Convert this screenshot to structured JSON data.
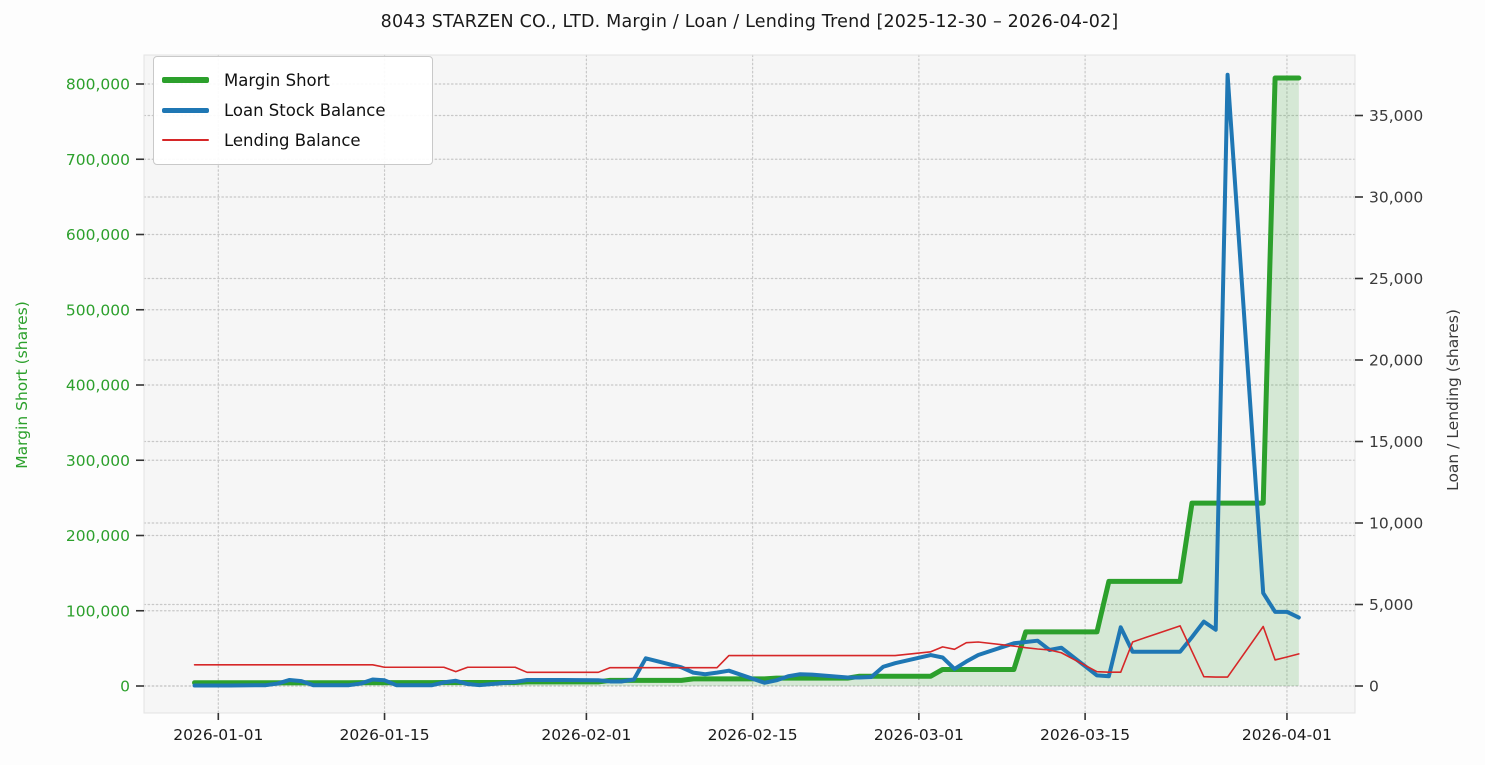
{
  "chart_data": {
    "type": "line",
    "title": "8043 STARZEN CO., LTD. Margin / Loan / Lending Trend [2025-12-30 – 2026-04-02]",
    "grid": true,
    "plot_background": "#f6f6f6",
    "gridline_color": "#c8c8c8",
    "x_dates": [
      "2025-12-30",
      "2025-12-31",
      "2026-01-01",
      "2026-01-02",
      "2026-01-05",
      "2026-01-06",
      "2026-01-07",
      "2026-01-08",
      "2026-01-09",
      "2026-01-12",
      "2026-01-13",
      "2026-01-14",
      "2026-01-15",
      "2026-01-16",
      "2026-01-19",
      "2026-01-20",
      "2026-01-21",
      "2026-01-22",
      "2026-01-23",
      "2026-01-26",
      "2026-01-27",
      "2026-01-28",
      "2026-01-29",
      "2026-01-30",
      "2026-02-02",
      "2026-02-03",
      "2026-02-04",
      "2026-02-05",
      "2026-02-06",
      "2026-02-09",
      "2026-02-10",
      "2026-02-11",
      "2026-02-12",
      "2026-02-13",
      "2026-02-16",
      "2026-02-17",
      "2026-02-18",
      "2026-02-19",
      "2026-02-20",
      "2026-02-23",
      "2026-02-24",
      "2026-02-25",
      "2026-02-26",
      "2026-02-27",
      "2026-03-02",
      "2026-03-03",
      "2026-03-04",
      "2026-03-05",
      "2026-03-06",
      "2026-03-09",
      "2026-03-10",
      "2026-03-11",
      "2026-03-12",
      "2026-03-13",
      "2026-03-16",
      "2026-03-17",
      "2026-03-18",
      "2026-03-19",
      "2026-03-20",
      "2026-03-23",
      "2026-03-24",
      "2026-03-25",
      "2026-03-26",
      "2026-03-27",
      "2026-03-30",
      "2026-03-31",
      "2026-04-01",
      "2026-04-02"
    ],
    "series": [
      {
        "name": "Margin Short",
        "axis": "left",
        "color": "#2ca02c",
        "line_width": 5,
        "fill": true,
        "fill_color": "rgba(44,160,44,0.16)",
        "values": [
          4400,
          4400,
          4400,
          4400,
          4400,
          4400,
          4400,
          4400,
          4400,
          4400,
          4500,
          4500,
          4500,
          4500,
          4500,
          4700,
          4700,
          4700,
          4700,
          4700,
          5500,
          5500,
          5500,
          5500,
          5500,
          7500,
          7500,
          7500,
          7500,
          7500,
          9500,
          9500,
          9500,
          9500,
          9500,
          10500,
          10500,
          10500,
          10500,
          10500,
          13000,
          13000,
          13000,
          13000,
          13000,
          22000,
          22000,
          22000,
          22000,
          22000,
          72000,
          72000,
          72000,
          72000,
          72000,
          139000,
          139000,
          139000,
          139000,
          139000,
          243000,
          243000,
          243000,
          243000,
          243000,
          808000,
          808000,
          808000
        ]
      },
      {
        "name": "Loan Stock Balance",
        "axis": "right",
        "color": "#1f77b4",
        "line_width": 4,
        "fill": false,
        "values": [
          30,
          30,
          30,
          30,
          50,
          150,
          370,
          300,
          50,
          50,
          150,
          400,
          350,
          50,
          50,
          220,
          320,
          120,
          50,
          250,
          370,
          370,
          370,
          370,
          350,
          280,
          280,
          400,
          1700,
          1150,
          820,
          720,
          820,
          940,
          200,
          350,
          600,
          720,
          700,
          520,
          520,
          550,
          1180,
          1400,
          1900,
          1750,
          1050,
          1500,
          1900,
          2620,
          2700,
          2780,
          2210,
          2350,
          650,
          600,
          3600,
          2100,
          2100,
          2100,
          3000,
          3950,
          3450,
          37500,
          5700,
          4550,
          4550,
          4200
        ]
      },
      {
        "name": "Lending Balance",
        "axis": "right",
        "color": "#d62728",
        "line_width": 1.6,
        "fill": false,
        "values": [
          1300,
          1300,
          1300,
          1300,
          1300,
          1300,
          1300,
          1300,
          1300,
          1300,
          1300,
          1300,
          1150,
          1150,
          1150,
          1150,
          880,
          1150,
          1150,
          1150,
          840,
          840,
          840,
          840,
          840,
          1125,
          1125,
          1125,
          1125,
          1125,
          1125,
          1125,
          1125,
          1870,
          1870,
          1870,
          1870,
          1870,
          1870,
          1870,
          1870,
          1870,
          1870,
          1870,
          2100,
          2400,
          2250,
          2660,
          2700,
          2450,
          2350,
          2270,
          2210,
          2040,
          880,
          850,
          850,
          2700,
          2950,
          3690,
          2130,
          570,
          550,
          550,
          3650,
          1600,
          1780,
          1970
        ]
      }
    ],
    "left_axis": {
      "label": "Margin Short (shares)",
      "color": "#2ca02c",
      "tick_values": [
        0,
        100000,
        200000,
        300000,
        400000,
        500000,
        600000,
        700000,
        800000
      ],
      "tick_labels": [
        "0",
        "100,000",
        "200,000",
        "300,000",
        "400,000",
        "500,000",
        "600,000",
        "700,000",
        "800,000"
      ]
    },
    "right_axis": {
      "label": "Loan / Lending (shares)",
      "color": "#3a3a3a",
      "tick_values": [
        0,
        5000,
        10000,
        15000,
        20000,
        25000,
        30000,
        35000
      ],
      "tick_labels": [
        "0",
        "5,000",
        "10,000",
        "15,000",
        "20,000",
        "25,000",
        "30,000",
        "35,000"
      ]
    },
    "x_axis": {
      "tick_dates": [
        "2026-01-01",
        "2026-01-15",
        "2026-02-01",
        "2026-02-15",
        "2026-03-01",
        "2026-03-15",
        "2026-04-01"
      ],
      "tick_labels": [
        "2026-01-01",
        "2026-01-15",
        "2026-02-01",
        "2026-02-15",
        "2026-03-01",
        "2026-03-15",
        "2026-04-01"
      ],
      "color": "#1a1a1a"
    },
    "legend": {
      "position": "upper left",
      "entries": [
        "Margin Short",
        "Loan Stock Balance",
        "Lending Balance"
      ]
    }
  }
}
